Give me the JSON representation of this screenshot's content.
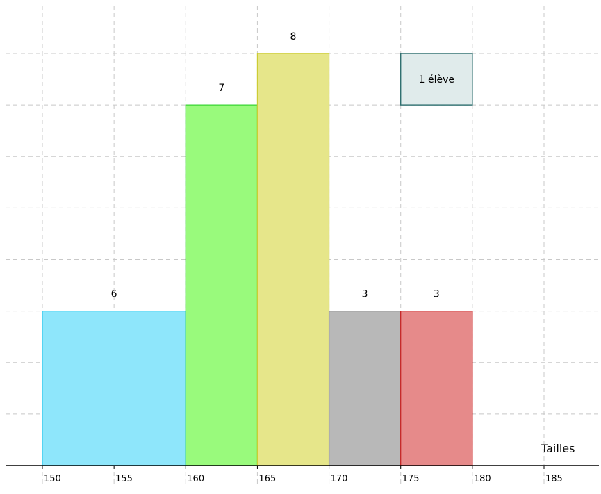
{
  "chart_data": {
    "type": "bar",
    "xlabel": "Tailles",
    "ylabel": "",
    "title": "",
    "xlim": [
      145,
      190
    ],
    "ylim": [
      0,
      8.8
    ],
    "x_ticks": [
      150,
      155,
      160,
      165,
      170,
      175,
      180,
      185
    ],
    "x_tick_labels": [
      "150",
      "155",
      "160",
      "165",
      "170",
      "175",
      "180",
      "185"
    ],
    "grid": true,
    "bars": [
      {
        "from": 150,
        "to": 160,
        "height": 3,
        "label": "6",
        "fill": "#8ee6fb",
        "stroke": "#2ec9ec"
      },
      {
        "from": 160,
        "to": 165,
        "height": 7,
        "label": "7",
        "fill": "#99fa7c",
        "stroke": "#35d430"
      },
      {
        "from": 165,
        "to": 170,
        "height": 8,
        "label": "8",
        "fill": "#e6e68a",
        "stroke": "#cccc33"
      },
      {
        "from": 170,
        "to": 175,
        "height": 3,
        "label": "3",
        "fill": "#b8b8b8",
        "stroke": "#808080"
      },
      {
        "from": 175,
        "to": 180,
        "height": 3,
        "label": "3",
        "fill": "#e68a8a",
        "stroke": "#cc1f1f"
      }
    ],
    "unit_box": {
      "label": "1 élève",
      "from": 175,
      "to": 180,
      "y_from": 7,
      "y_to": 8,
      "fill": "#e0ebeb",
      "stroke": "#2f6f6f"
    }
  }
}
